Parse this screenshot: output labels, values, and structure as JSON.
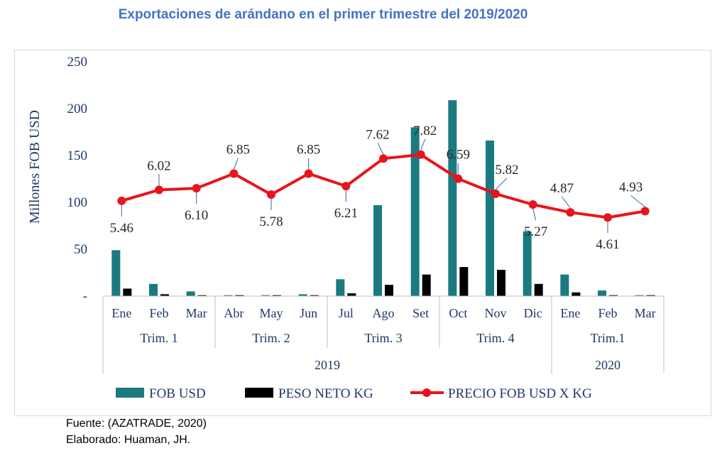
{
  "title": "Exportaciones de arándano en el primer trimestre del 2019/2020",
  "source_line": "Fuente: (AZATRADE, 2020)",
  "author_line": "Elaborado: Huaman, JH.",
  "colors": {
    "fob": "#1a7a80",
    "peso": "#000000",
    "precio": "#e8141b",
    "title": "#4472c4",
    "axis_text": "#1f3864",
    "leader": "#4f81bd"
  },
  "chart_data": {
    "type": "bar",
    "categories": [
      "Ene",
      "Feb",
      "Mar",
      "Abr",
      "May",
      "Jun",
      "Jul",
      "Ago",
      "Set",
      "Oct",
      "Nov",
      "Dic",
      "Ene",
      "Feb",
      "Mar"
    ],
    "quarter_groups": [
      {
        "label": "Trim. 1",
        "span": 3
      },
      {
        "label": "Trim. 2",
        "span": 3
      },
      {
        "label": "Trim. 3",
        "span": 3
      },
      {
        "label": "Trim. 4",
        "span": 3
      },
      {
        "label": "Trim.1",
        "span": 3
      }
    ],
    "year_groups": [
      {
        "label": "2019",
        "span": 12
      },
      {
        "label": "2020",
        "span": 3
      }
    ],
    "ylabel": "Millones FOB USD",
    "ylim": [
      0,
      250
    ],
    "yticks": [
      "250",
      "200",
      "150",
      "100",
      "50",
      "-"
    ],
    "series": [
      {
        "name": "FOB USD",
        "type": "bar",
        "values": [
          49,
          13,
          5,
          1,
          1,
          2,
          18,
          97,
          180,
          209,
          166,
          69,
          23,
          6,
          1
        ]
      },
      {
        "name": "PESO NETO KG",
        "type": "bar",
        "values": [
          8,
          2,
          1,
          1,
          1,
          1,
          3,
          12,
          23,
          31,
          28,
          13,
          4,
          1,
          1
        ]
      },
      {
        "name": "PRECIO FOB USD X KG",
        "type": "line",
        "values": [
          5.46,
          6.02,
          6.1,
          6.85,
          5.78,
          6.85,
          6.21,
          7.62,
          7.82,
          6.59,
          5.82,
          5.27,
          4.87,
          4.61,
          4.93
        ],
        "labels": [
          "5.46",
          "6.02",
          "6.10",
          "6.85",
          "5.78",
          "6.85",
          "6.21",
          "7.62",
          "7.82",
          "6.59",
          "5.82",
          "5.27",
          "4.87",
          "4.61",
          "4.93"
        ]
      }
    ],
    "grid": false,
    "legend_position": "bottom"
  }
}
